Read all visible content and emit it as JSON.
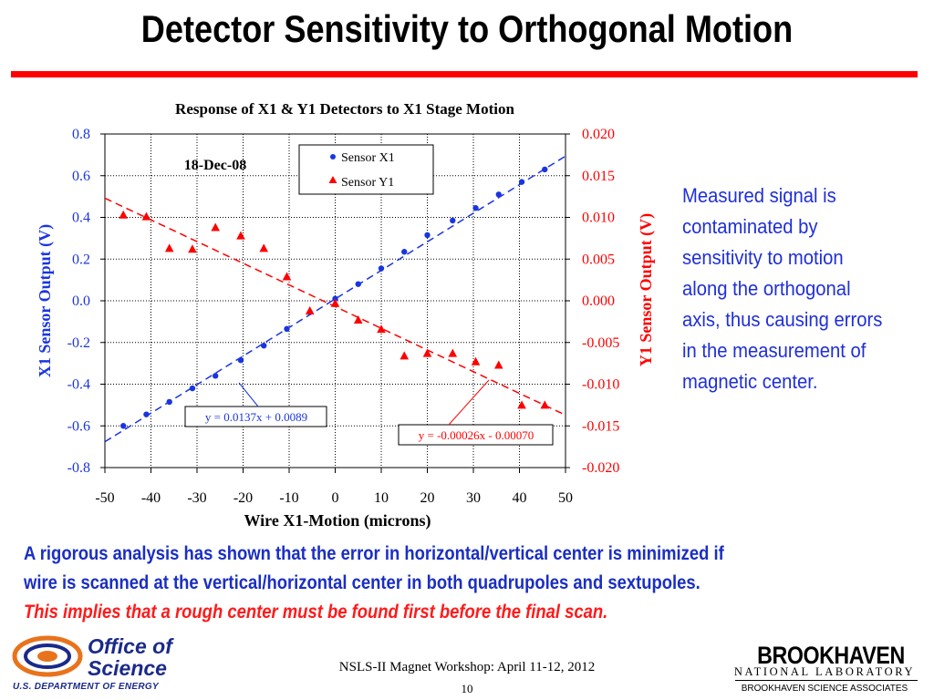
{
  "slide": {
    "title": "Detector Sensitivity to Orthogonal Motion",
    "side_note": "Measured signal is contaminated by sensitivity to motion along the orthogonal axis, thus causing errors in the measurement of magnetic center.",
    "analysis_line1": "A rigorous analysis has shown that the error in horizontal/vertical center is minimized if",
    "analysis_line2": "wire is scanned at the vertical/horizontal center in both quadrupoles and sextupoles.",
    "analysis_line3": "This implies that a rough center must be found first before the final scan.",
    "footer": "NSLS-II Magnet Workshop: April 11-12, 2012",
    "page_number": "10",
    "doe_logo_line1": "Office of",
    "doe_logo_line2": "Science",
    "doe_logo_line3": "U.S. DEPARTMENT OF ENERGY",
    "bnl_logo_line1": "BROOKHAVEN",
    "bnl_logo_line2": "NATIONAL LABORATORY",
    "bnl_logo_line3": "BROOKHAVEN SCIENCE ASSOCIATES",
    "colors": {
      "title": "#000000",
      "bar": "#ff0000",
      "note": "#1f2fd8",
      "analysis": "#1a2ec4",
      "implies": "#ff1a1a"
    }
  },
  "chart_data": {
    "type": "scatter",
    "title": "Response of X1 & Y1 Detectors to X1 Stage Motion",
    "date_label": "18-Dec-08",
    "xlabel": "Wire X1-Motion (microns)",
    "ylabel_left": "X1 Sensor Output (V)",
    "ylabel_right": "Y1 Sensor Output (V)",
    "xlim": [
      -50,
      50
    ],
    "ylim_left": [
      -0.8,
      0.8
    ],
    "ylim_right": [
      -0.02,
      0.02
    ],
    "x_ticks": [
      -50,
      -40,
      -30,
      -20,
      -10,
      0,
      10,
      20,
      30,
      40,
      50
    ],
    "y_ticks_left": [
      "0.8",
      "0.6",
      "0.4",
      "0.2",
      "0.0",
      "-0.2",
      "-0.4",
      "-0.6",
      "-0.8"
    ],
    "y_ticks_right": [
      "0.020",
      "0.015",
      "0.010",
      "0.005",
      "0.000",
      "-0.005",
      "-0.010",
      "-0.015",
      "-0.020"
    ],
    "grid": true,
    "legend_position": "top-center",
    "series": [
      {
        "name": "Sensor X1",
        "axis": "left",
        "marker": "circle",
        "color": "#1a35e0",
        "x": [
          -46,
          -41,
          -36,
          -31,
          -26,
          -20.5,
          -15.5,
          -10.5,
          -5.5,
          0,
          5,
          10,
          15,
          20,
          25.5,
          30.5,
          35.5,
          40.5,
          45.5
        ],
        "y": [
          -0.6,
          -0.545,
          -0.485,
          -0.42,
          -0.36,
          -0.285,
          -0.215,
          -0.135,
          -0.055,
          0.01,
          0.08,
          0.155,
          0.235,
          0.315,
          0.385,
          0.445,
          0.51,
          0.57,
          0.63
        ]
      },
      {
        "name": "Sensor Y1",
        "axis": "right",
        "marker": "triangle",
        "color": "#ff0000",
        "x": [
          -46,
          -41,
          -36,
          -31,
          -26,
          -20.5,
          -15.5,
          -10.5,
          -5.5,
          0,
          5,
          10,
          15,
          20,
          25.5,
          30.5,
          35.5,
          40.5,
          45.5
        ],
        "y": [
          0.0103,
          0.0101,
          0.0063,
          0.0062,
          0.0088,
          0.0078,
          0.0063,
          0.0029,
          -0.0012,
          -0.0003,
          -0.0023,
          -0.0034,
          -0.0066,
          -0.0063,
          -0.0063,
          -0.0073,
          -0.0077,
          -0.0125,
          -0.0125
        ]
      }
    ],
    "fits": [
      {
        "series": "Sensor X1",
        "slope": 0.0137,
        "intercept": 0.0089,
        "label": "y = 0.0137x + 0.0089",
        "color": "#1a35e0"
      },
      {
        "series": "Sensor Y1",
        "slope": -0.00026,
        "intercept": -0.0007,
        "label": "y = -0.00026x - 0.00070",
        "color": "#ff0000"
      }
    ]
  }
}
